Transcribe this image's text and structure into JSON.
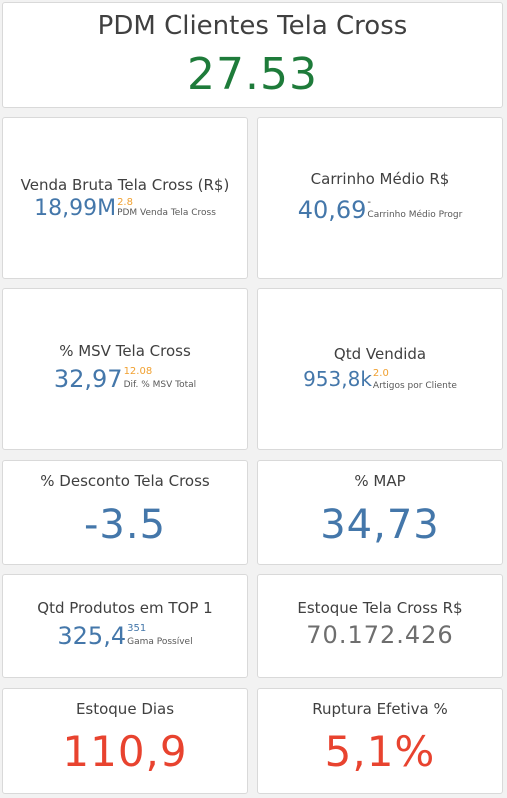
{
  "header": {
    "title": "PDM Clientes Tela Cross",
    "value": "27.53",
    "value_color": "#1e7b3a"
  },
  "kpis": {
    "venda_bruta": {
      "title": "Venda Bruta Tela Cross (R$)",
      "value": "18,99M",
      "sup": "2.8",
      "sub": "PDM Venda Tela Cross"
    },
    "carrinho_medio": {
      "title": "Carrinho Médio R$",
      "value": "40,69",
      "sup": "-",
      "sub": "Carrinho Médio Progr"
    },
    "msv": {
      "title": "% MSV Tela Cross",
      "value": "32,97",
      "sup": "12.08",
      "sub": "Dif. % MSV Total"
    },
    "qtd_vendida": {
      "title": "Qtd Vendida",
      "value": "953,8k",
      "sup": "2.0",
      "sub": "Artigos por Cliente"
    },
    "desconto": {
      "title": "% Desconto Tela Cross",
      "value": "-3.5"
    },
    "map": {
      "title": "% MAP",
      "value": "34,73"
    },
    "produtos_top1": {
      "title": "Qtd Produtos em TOP 1",
      "value": "325,4",
      "sup": "351",
      "sub": "Gama Possível"
    },
    "estoque_rs": {
      "title": "Estoque Tela Cross R$",
      "value": "70.172.426"
    },
    "estoque_dias": {
      "title": "Estoque Dias",
      "value": "110,9"
    },
    "ruptura": {
      "title": "Ruptura Efetiva %",
      "value": "5,1%"
    }
  },
  "colors": {
    "blue": "#4477aa",
    "orange": "#f0a030",
    "red": "#e8432f",
    "gray": "#6e6e6e",
    "green": "#1e7b3a"
  }
}
